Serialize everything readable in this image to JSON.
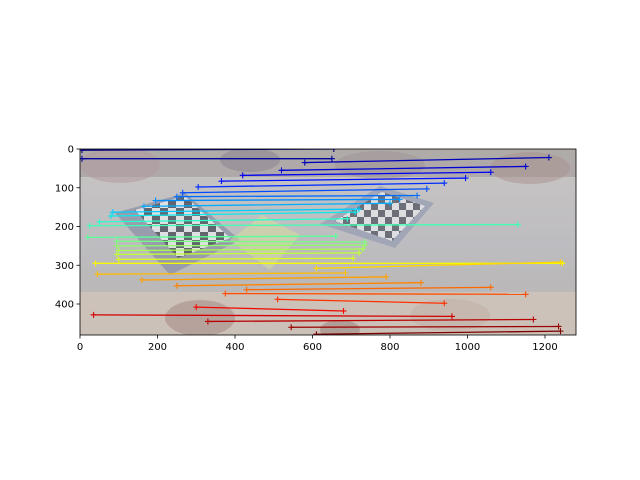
{
  "chart_data": {
    "type": "line",
    "title": "",
    "xlabel": "",
    "ylabel": "",
    "xlim": [
      0,
      1280
    ],
    "ylim": [
      480,
      0
    ],
    "x_ticks": [
      0,
      200,
      400,
      600,
      800,
      1000,
      1200
    ],
    "y_ticks": [
      0,
      100,
      200,
      300,
      400
    ],
    "x_tick_labels": [
      "0",
      "200",
      "400",
      "600",
      "800",
      "1000",
      "1200"
    ],
    "y_tick_labels": [
      "0",
      "100",
      "200",
      "300",
      "400"
    ],
    "grid": false,
    "legend": "none",
    "background": "blended image of two chessboard views on a table (left and right views side by side)",
    "marker": "+",
    "colormap": "jet",
    "matches": [
      {
        "x1": 5,
        "y1": 3,
        "x2": 655,
        "y2": 0,
        "color": "#00007f"
      },
      {
        "x1": 5,
        "y1": 25,
        "x2": 650,
        "y2": 25,
        "color": "#00009b"
      },
      {
        "x1": 580,
        "y1": 35,
        "x2": 1210,
        "y2": 22,
        "color": "#0000b8"
      },
      {
        "x1": 520,
        "y1": 55,
        "x2": 1150,
        "y2": 45,
        "color": "#0000d4"
      },
      {
        "x1": 420,
        "y1": 68,
        "x2": 1060,
        "y2": 60,
        "color": "#0000f1"
      },
      {
        "x1": 365,
        "y1": 83,
        "x2": 995,
        "y2": 75,
        "color": "#000dff"
      },
      {
        "x1": 305,
        "y1": 98,
        "x2": 940,
        "y2": 88,
        "color": "#002dff"
      },
      {
        "x1": 265,
        "y1": 113,
        "x2": 895,
        "y2": 103,
        "color": "#004dff"
      },
      {
        "x1": 250,
        "y1": 123,
        "x2": 870,
        "y2": 120,
        "color": "#006dff"
      },
      {
        "x1": 195,
        "y1": 133,
        "x2": 825,
        "y2": 130,
        "color": "#008dff"
      },
      {
        "x1": 165,
        "y1": 148,
        "x2": 800,
        "y2": 140,
        "color": "#00adff"
      },
      {
        "x1": 85,
        "y1": 163,
        "x2": 720,
        "y2": 155,
        "color": "#00cdff"
      },
      {
        "x1": 80,
        "y1": 173,
        "x2": 710,
        "y2": 163,
        "color": "#0ce9ea"
      },
      {
        "x1": 50,
        "y1": 188,
        "x2": 690,
        "y2": 180,
        "color": "#29ffce"
      },
      {
        "x1": 25,
        "y1": 198,
        "x2": 1130,
        "y2": 195,
        "color": "#42ffb5"
      },
      {
        "x1": 20,
        "y1": 228,
        "x2": 660,
        "y2": 225,
        "color": "#5cff9a"
      },
      {
        "x1": 95,
        "y1": 238,
        "x2": 735,
        "y2": 240,
        "color": "#75ff81"
      },
      {
        "x1": 95,
        "y1": 250,
        "x2": 735,
        "y2": 248,
        "color": "#8fff67"
      },
      {
        "x1": 100,
        "y1": 262,
        "x2": 730,
        "y2": 258,
        "color": "#a8ff4e"
      },
      {
        "x1": 95,
        "y1": 272,
        "x2": 720,
        "y2": 268,
        "color": "#c1ff34"
      },
      {
        "x1": 100,
        "y1": 285,
        "x2": 705,
        "y2": 282,
        "color": "#dbff1a"
      },
      {
        "x1": 40,
        "y1": 295,
        "x2": 1245,
        "y2": 295,
        "color": "#f4f802"
      },
      {
        "x1": 610,
        "y1": 308,
        "x2": 1240,
        "y2": 292,
        "color": "#ffd800"
      },
      {
        "x1": 45,
        "y1": 323,
        "x2": 685,
        "y2": 320,
        "color": "#ffbc00"
      },
      {
        "x1": 160,
        "y1": 338,
        "x2": 790,
        "y2": 330,
        "color": "#ffa000"
      },
      {
        "x1": 250,
        "y1": 353,
        "x2": 880,
        "y2": 345,
        "color": "#ff8400"
      },
      {
        "x1": 430,
        "y1": 363,
        "x2": 1060,
        "y2": 357,
        "color": "#ff6800"
      },
      {
        "x1": 375,
        "y1": 373,
        "x2": 1150,
        "y2": 375,
        "color": "#ff4d00"
      },
      {
        "x1": 510,
        "y1": 388,
        "x2": 940,
        "y2": 398,
        "color": "#ff3100"
      },
      {
        "x1": 300,
        "y1": 408,
        "x2": 680,
        "y2": 418,
        "color": "#f10800"
      },
      {
        "x1": 35,
        "y1": 428,
        "x2": 960,
        "y2": 432,
        "color": "#d40000"
      },
      {
        "x1": 330,
        "y1": 445,
        "x2": 1170,
        "y2": 440,
        "color": "#b80000"
      },
      {
        "x1": 545,
        "y1": 460,
        "x2": 1235,
        "y2": 458,
        "color": "#9b0000"
      },
      {
        "x1": 610,
        "y1": 478,
        "x2": 1240,
        "y2": 470,
        "color": "#7f0000"
      }
    ]
  }
}
